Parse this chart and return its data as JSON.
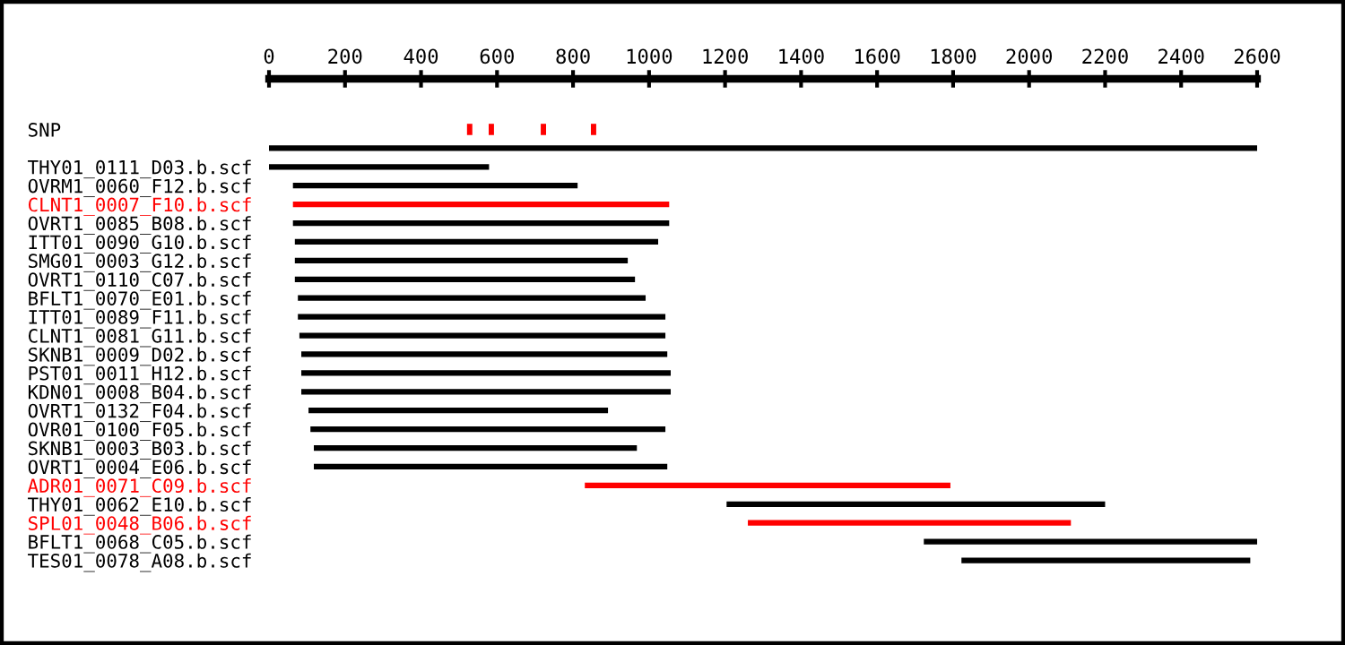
{
  "chart_data": {
    "type": "bar",
    "orientation": "horizontal",
    "categories": [
      "SNP",
      null,
      "THY01_0111_D03.b.scf",
      "OVRM1_0060_F12.b.scf",
      "CLNT1_0007_F10.b.scf",
      "OVRT1_0085_B08.b.scf",
      "ITT01_0090_G10.b.scf",
      "SMG01_0003_G12.b.scf",
      "OVRT1_0110_C07.b.scf",
      "BFLT1_0070_E01.b.scf",
      "ITT01_0089_F11.b.scf",
      "CLNT1_0081_G11.b.scf",
      "SKNB1_0009_D02.b.scf",
      "PST01_0011_H12.b.scf",
      "KDN01_0008_B04.b.scf",
      "OVRT1_0132_F04.b.scf",
      "OVR01_0100_F05.b.scf",
      "SKNB1_0003_B03.b.scf",
      "OVRT1_0004_E06.b.scf",
      "ADR01_0071_C09.b.scf",
      "THY01_0062_E10.b.scf",
      "SPL01_0048_B06.b.scf",
      "BFLT1_0068_C05.b.scf",
      "TES01_0078_A08.b.scf"
    ],
    "series": [
      {
        "base": [
          null,
          0,
          0,
          63,
          63,
          63,
          68,
          68,
          68,
          76,
          76,
          80,
          85,
          85,
          85,
          104,
          109,
          118,
          118,
          831,
          1204,
          1260,
          1723,
          1822
        ],
        "values": [
          null,
          2600,
          579,
          749,
          990,
          990,
          956,
          876,
          895,
          915,
          967,
          963,
          963,
          972,
          972,
          788,
          934,
          850,
          930,
          962,
          996,
          850,
          877,
          760
        ],
        "colors": [
          "#000000",
          "#000000",
          "#000000",
          "#000000",
          "#ff0000",
          "#000000",
          "#000000",
          "#000000",
          "#000000",
          "#000000",
          "#000000",
          "#000000",
          "#000000",
          "#000000",
          "#000000",
          "#000000",
          "#000000",
          "#000000",
          "#000000",
          "#ff0000",
          "#000000",
          "#ff0000",
          "#000000",
          "#000000"
        ]
      },
      {
        "type": "bar",
        "color": "#ff0000",
        "base": [
          521,
          null,
          null,
          null,
          null,
          null,
          null,
          null,
          null,
          null,
          null,
          null,
          null,
          null,
          null,
          null,
          null,
          null,
          null,
          null,
          null,
          null,
          null,
          null
        ],
        "values": [
          14,
          null,
          null,
          null,
          null,
          null,
          null,
          null,
          null,
          null,
          null,
          null,
          null,
          null,
          null,
          null,
          null,
          null,
          null,
          null,
          null,
          null,
          null,
          null
        ]
      },
      {
        "type": "bar",
        "color": "#ff0000",
        "base": [
          578,
          null,
          null,
          null,
          null,
          null,
          null,
          null,
          null,
          null,
          null,
          null,
          null,
          null,
          null,
          null,
          null,
          null,
          null,
          null,
          null,
          null,
          null,
          null
        ],
        "values": [
          14,
          null,
          null,
          null,
          null,
          null,
          null,
          null,
          null,
          null,
          null,
          null,
          null,
          null,
          null,
          null,
          null,
          null,
          null,
          null,
          null,
          null,
          null,
          null
        ]
      },
      {
        "type": "bar",
        "color": "#ff0000",
        "base": [
          715,
          null,
          null,
          null,
          null,
          null,
          null,
          null,
          null,
          null,
          null,
          null,
          null,
          null,
          null,
          null,
          null,
          null,
          null,
          null,
          null,
          null,
          null,
          null
        ],
        "values": [
          14,
          null,
          null,
          null,
          null,
          null,
          null,
          null,
          null,
          null,
          null,
          null,
          null,
          null,
          null,
          null,
          null,
          null,
          null,
          null,
          null,
          null,
          null,
          null
        ]
      },
      {
        "type": "bar",
        "color": "#ff0000",
        "base": [
          847,
          null,
          null,
          null,
          null,
          null,
          null,
          null,
          null,
          null,
          null,
          null,
          null,
          null,
          null,
          null,
          null,
          null,
          null,
          null,
          null,
          null,
          null,
          null
        ],
        "values": [
          14,
          null,
          null,
          null,
          null,
          null,
          null,
          null,
          null,
          null,
          null,
          null,
          null,
          null,
          null,
          null,
          null,
          null,
          null,
          null,
          null,
          null,
          null,
          null
        ]
      }
    ],
    "xlim": [
      0,
      2600
    ],
    "xticks": [
      0,
      200,
      400,
      600,
      800,
      1000,
      1200,
      1400,
      1600,
      1800,
      2000,
      2200,
      2400,
      2600
    ],
    "grid": false,
    "legend": false
  }
}
